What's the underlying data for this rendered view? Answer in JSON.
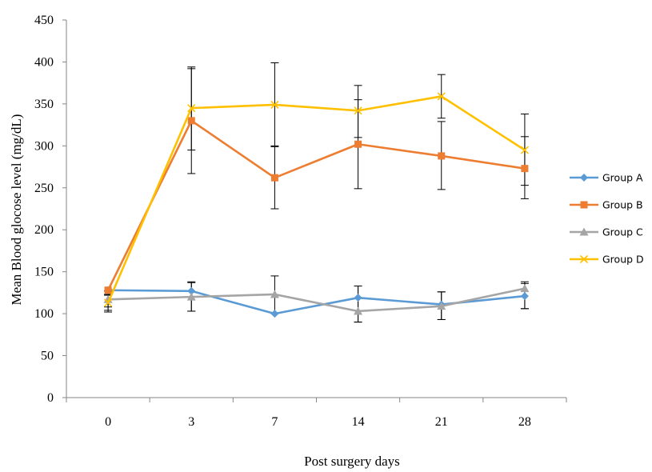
{
  "chart_data": {
    "type": "line",
    "title": "",
    "xlabel": "Post surgery days",
    "ylabel": "Mean Blood glocose level (mg/dL)",
    "categories": [
      "0",
      "3",
      "7",
      "14",
      "21",
      "28"
    ],
    "ylim": [
      0,
      450
    ],
    "yticks": [
      "0",
      "50",
      "100",
      "150",
      "200",
      "250",
      "300",
      "350",
      "400",
      "450"
    ],
    "grid": false,
    "legend_position": "right",
    "error_bars": true,
    "series": [
      {
        "name": "Group A",
        "color": "#5B9BD5",
        "marker": "diamond",
        "values": [
          128,
          127,
          100,
          119,
          111,
          121
        ],
        "err_low": [
          102,
          103,
          100,
          90,
          93,
          106
        ],
        "err_high": [
          122,
          138,
          100,
          133,
          126,
          136
        ]
      },
      {
        "name": "Group B",
        "color": "#ED7D31",
        "marker": "square",
        "values": [
          128,
          330,
          262,
          302,
          288,
          273
        ],
        "err_low": [
          128,
          267,
          225,
          249,
          248,
          237
        ],
        "err_high": [
          128,
          394,
          299,
          355,
          329,
          311
        ]
      },
      {
        "name": "Group C",
        "color": "#A5A5A5",
        "marker": "triangle",
        "values": [
          117,
          120,
          123,
          103,
          109,
          130
        ],
        "err_low": [
          108,
          103,
          100,
          90,
          93,
          106
        ],
        "err_high": [
          127,
          137,
          145,
          133,
          126,
          138
        ]
      },
      {
        "name": "Group D",
        "color": "#FFC000",
        "marker": "x",
        "values": [
          113,
          345,
          349,
          342,
          359,
          295
        ],
        "err_low": [
          104,
          295,
          300,
          310,
          333,
          253
        ],
        "err_high": [
          123,
          392,
          399,
          372,
          385,
          338
        ]
      }
    ]
  }
}
